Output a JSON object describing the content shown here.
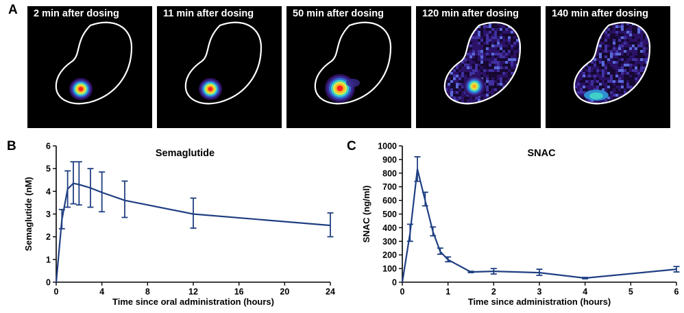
{
  "panel_labels": {
    "a": "A",
    "b": "B",
    "c": "C"
  },
  "images": [
    {
      "caption": "2 min after dosing",
      "state": "concentrated"
    },
    {
      "caption": "11 min after dosing",
      "state": "concentrated"
    },
    {
      "caption": "50 min after dosing",
      "state": "spreading"
    },
    {
      "caption": "120 min after dosing",
      "state": "diffuse"
    },
    {
      "caption": "140 min after dosing",
      "state": "dispersed"
    }
  ],
  "colors": {
    "series": "#1f3f82",
    "outline": "#ffffff",
    "background": "#000000"
  },
  "chart_data": [
    {
      "type": "line",
      "title": "Semaglutide",
      "xlabel": "Time since oral administration (hours)",
      "ylabel": "Semaglutide (nM)",
      "xlim": [
        0,
        24
      ],
      "ylim": [
        0,
        6
      ],
      "xticks": [
        "0",
        "4",
        "8",
        "12",
        "16",
        "20",
        "24"
      ],
      "yticks": [
        "0",
        "1",
        "2",
        "3",
        "4",
        "5",
        "6"
      ],
      "grid": false,
      "x": [
        0,
        0.5,
        1,
        1.5,
        2,
        3,
        4,
        6,
        12,
        24
      ],
      "y": [
        0,
        2.75,
        4.1,
        4.35,
        4.3,
        4.15,
        3.95,
        3.6,
        3.0,
        2.5
      ],
      "err_low": [
        0,
        2.35,
        3.3,
        3.45,
        3.4,
        3.3,
        3.1,
        2.85,
        2.38,
        2.0
      ],
      "err_high": [
        0,
        3.2,
        4.9,
        5.3,
        5.3,
        5.0,
        4.85,
        4.45,
        3.7,
        3.05
      ]
    },
    {
      "type": "line",
      "title": "SNAC",
      "xlabel": "Time since administration (hours)",
      "ylabel": "SNAC (ng/ml)",
      "xlim": [
        0,
        6
      ],
      "ylim": [
        0,
        1000
      ],
      "xticks": [
        "0",
        "1",
        "2",
        "3",
        "4",
        "5",
        "6"
      ],
      "yticks": [
        "0",
        "100",
        "200",
        "300",
        "400",
        "500",
        "600",
        "700",
        "800",
        "900",
        "1000"
      ],
      "grid": false,
      "x": [
        0,
        0.17,
        0.33,
        0.5,
        0.67,
        0.83,
        1,
        1.5,
        2,
        3,
        4,
        6
      ],
      "y": [
        0,
        360,
        830,
        600,
        370,
        225,
        165,
        75,
        80,
        70,
        30,
        95
      ],
      "err_low": [
        0,
        300,
        740,
        560,
        340,
        205,
        150,
        70,
        60,
        50,
        25,
        75
      ],
      "err_high": [
        0,
        425,
        920,
        660,
        405,
        250,
        185,
        80,
        100,
        95,
        35,
        115
      ]
    }
  ]
}
